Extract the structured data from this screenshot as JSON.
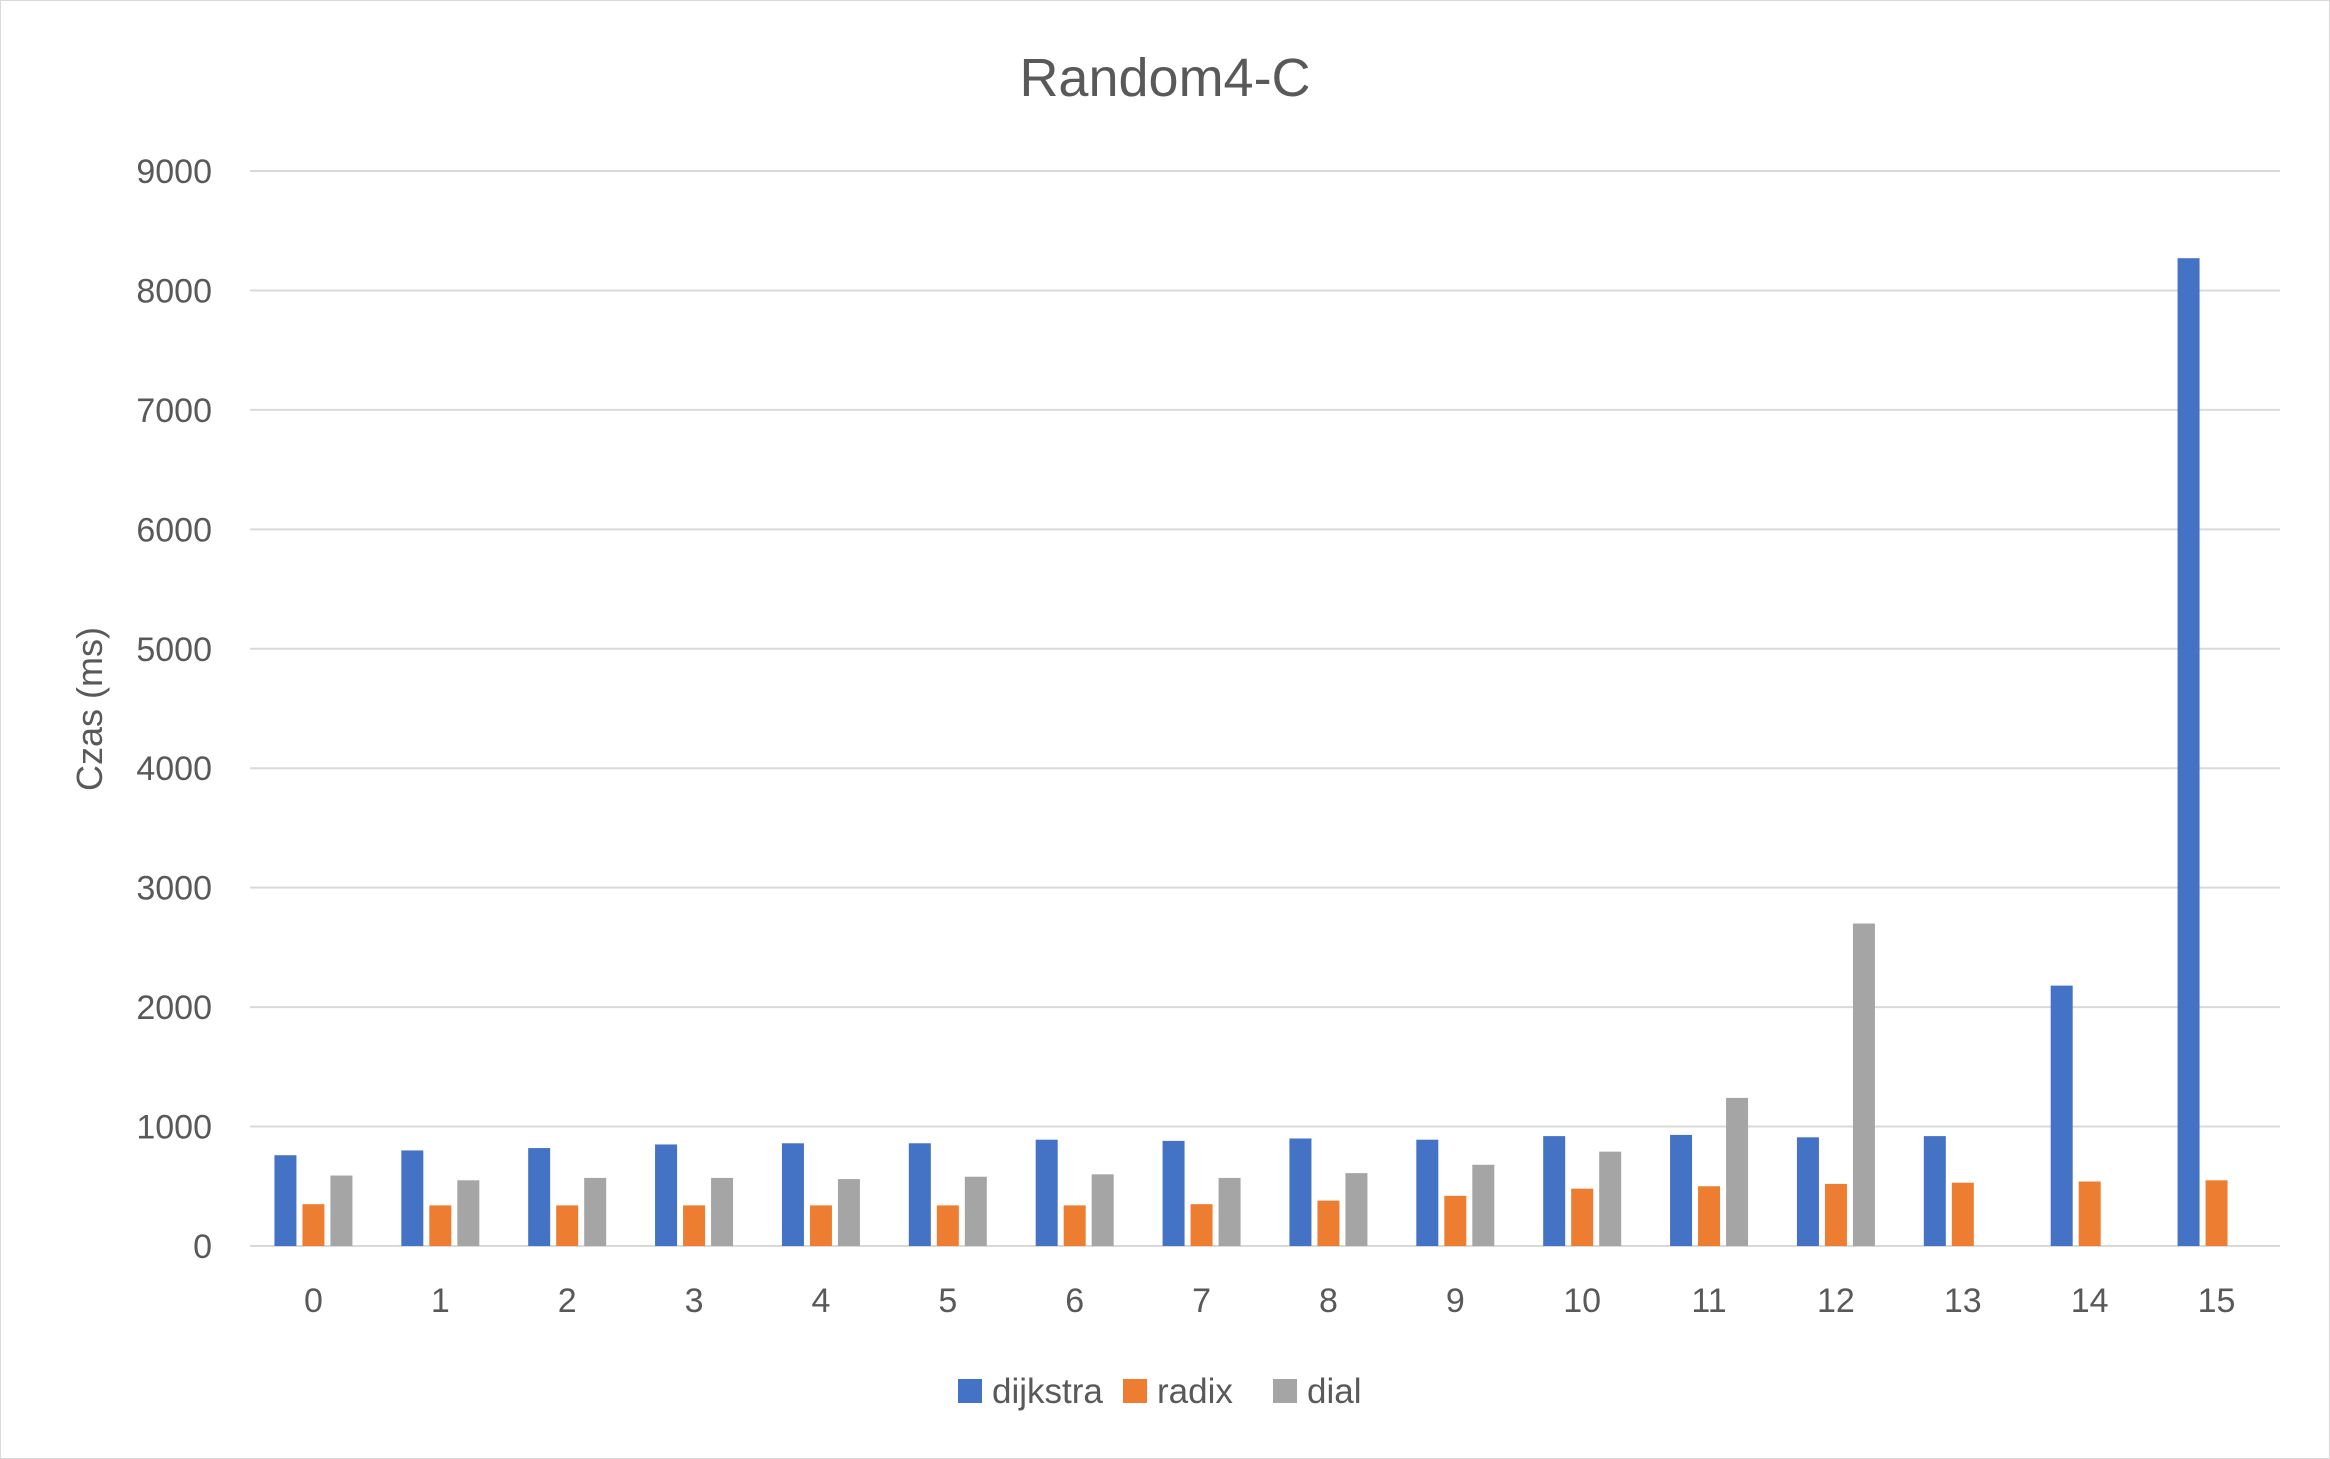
{
  "chart_data": {
    "type": "bar",
    "title": "Random4-C",
    "xlabel": "",
    "ylabel": "Czas (ms)",
    "ylim": [
      0,
      9000
    ],
    "yticks": [
      0,
      1000,
      2000,
      3000,
      4000,
      5000,
      6000,
      7000,
      8000,
      9000
    ],
    "grid": true,
    "legend_position": "bottom",
    "categories": [
      "0",
      "1",
      "2",
      "3",
      "4",
      "5",
      "6",
      "7",
      "8",
      "9",
      "10",
      "11",
      "12",
      "13",
      "14",
      "15"
    ],
    "series": [
      {
        "name": "dijkstra",
        "color": "#4472C4",
        "values": [
          760,
          800,
          820,
          850,
          860,
          860,
          890,
          880,
          900,
          890,
          920,
          930,
          910,
          920,
          2180,
          8270
        ]
      },
      {
        "name": "radix",
        "color": "#ED7D31",
        "values": [
          350,
          340,
          340,
          340,
          340,
          340,
          340,
          350,
          380,
          420,
          480,
          500,
          520,
          530,
          540,
          550
        ]
      },
      {
        "name": "dial",
        "color": "#A5A5A5",
        "values": [
          590,
          550,
          570,
          570,
          560,
          580,
          600,
          570,
          610,
          680,
          790,
          1240,
          2700,
          null,
          null,
          null
        ]
      }
    ],
    "gridline_color": "#d9d9d9",
    "text_color": "#595959"
  }
}
